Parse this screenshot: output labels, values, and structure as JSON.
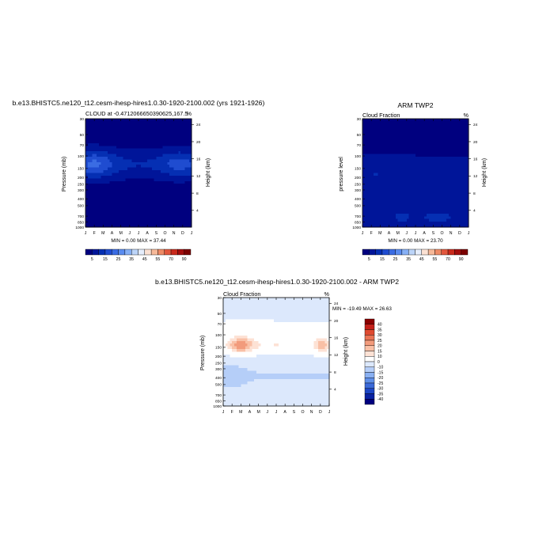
{
  "palette_main": [
    "#00007f",
    "#001599",
    "#052fb3",
    "#1f4cd0",
    "#3a6ce3",
    "#5a8cf0",
    "#86b0f5",
    "#bcd4f8",
    "#e6eefc",
    "#fbe1d3",
    "#f6b999",
    "#ee8b66",
    "#e2573d",
    "#c92a1c",
    "#a30d0d",
    "#7b0000"
  ],
  "palette_diff": [
    "#00007f",
    "#0a22a3",
    "#1c45c4",
    "#3b6ad9",
    "#5f8fe8",
    "#89b0f2",
    "#b5cef8",
    "#dce8fc",
    "#ffffff",
    "#fde2d5",
    "#f9c0a6",
    "#f29b7c",
    "#ea7354",
    "#df4a30",
    "#c4201a",
    "#8b0000"
  ],
  "panels": [
    {
      "title": "b.e13.BHISTC5.ne120_t12.cesm-ihesp-hires1.0.30-1920-2100.002 (yrs 1921-1926)",
      "left_label": "CLOUD at -0.4712066650390625,167.5",
      "right_label": "%",
      "ylabel": "Pressure (mb)",
      "ylabel_right": "Height (km)",
      "stats": "MIN =   0.00 MAX =  37.44",
      "months": [
        "J",
        "F",
        "M",
        "A",
        "M",
        "J",
        "J",
        "A",
        "S",
        "O",
        "N",
        "D",
        "J"
      ],
      "pressure_ticks": [
        "30",
        "50",
        "70",
        "100",
        "150",
        "200",
        "250",
        "300",
        "400",
        "500",
        "700",
        "850",
        "1000"
      ],
      "height_ticks": [
        "24",
        "20",
        "16",
        "12",
        "8",
        "4"
      ],
      "colorbar_labels": [
        "5",
        "15",
        "25",
        "35",
        "45",
        "55",
        "70",
        "90"
      ]
    },
    {
      "title": "ARM TWP2",
      "left_label": "Cloud Fraction",
      "right_label": "%",
      "ylabel": "pressure level",
      "ylabel_right": "Height (km)",
      "stats": "MIN =   0.00 MAX =  23.70",
      "months": [
        "J",
        "F",
        "M",
        "A",
        "M",
        "J",
        "J",
        "A",
        "S",
        "O",
        "N",
        "D",
        "J"
      ],
      "pressure_ticks": [
        "30",
        "50",
        "70",
        "100",
        "150",
        "200",
        "250",
        "300",
        "400",
        "500",
        "700",
        "850",
        "1000"
      ],
      "height_ticks": [
        "24",
        "20",
        "16",
        "12",
        "8",
        "4"
      ],
      "colorbar_labels": [
        "5",
        "15",
        "25",
        "35",
        "45",
        "55",
        "70",
        "90"
      ]
    },
    {
      "title": "b.e13.BHISTC5.ne120_t12.cesm-ihesp-hires1.0.30-1920-2100.002 - ARM TWP2",
      "left_label": "Cloud Fraction",
      "right_label": "%",
      "ylabel": "Pressure (mb)",
      "ylabel_right": "Height (km)",
      "stats": "MIN = -19.49 MAX =  26.63",
      "months": [
        "J",
        "F",
        "M",
        "A",
        "M",
        "J",
        "J",
        "A",
        "S",
        "O",
        "N",
        "D",
        "J"
      ],
      "pressure_ticks": [
        "30",
        "50",
        "70",
        "100",
        "150",
        "200",
        "250",
        "300",
        "400",
        "500",
        "700",
        "850",
        "1000"
      ],
      "height_ticks": [
        "24",
        "20",
        "16",
        "12",
        "8",
        "4"
      ],
      "colorbar_labels": [
        "40",
        "35",
        "30",
        "25",
        "20",
        "15",
        "10",
        "0",
        "-10",
        "-15",
        "-20",
        "-25",
        "-30",
        "-35",
        "-40"
      ]
    }
  ],
  "chart_data": [
    {
      "type": "heatmap",
      "title": "b.e13.BHISTC5.ne120_t12.cesm-ihesp-hires1.0.30-1920-2100.002 (yrs 1921-1926)",
      "variable": "CLOUD at -0.4712066650390625,167.5",
      "units": "%",
      "xlabel": "",
      "ylabel": "Pressure (mb)",
      "ylabel_right": "Height (km)",
      "x": [
        "J",
        "F",
        "M",
        "A",
        "M",
        "J",
        "J",
        "A",
        "S",
        "O",
        "N",
        "D",
        "J"
      ],
      "pressure_levels": [
        30,
        50,
        70,
        100,
        150,
        200,
        250,
        300,
        400,
        500,
        700,
        850,
        1000
      ],
      "ylim": [
        1000,
        30
      ],
      "min": 0.0,
      "max": 37.44,
      "levels": [
        5,
        15,
        25,
        35,
        45,
        55,
        70,
        90
      ]
    },
    {
      "type": "heatmap",
      "title": "ARM TWP2",
      "variable": "Cloud Fraction",
      "units": "%",
      "xlabel": "",
      "ylabel": "pressure level",
      "ylabel_right": "Height (km)",
      "x": [
        "J",
        "F",
        "M",
        "A",
        "M",
        "J",
        "J",
        "A",
        "S",
        "O",
        "N",
        "D",
        "J"
      ],
      "pressure_levels": [
        30,
        50,
        70,
        100,
        150,
        200,
        250,
        300,
        400,
        500,
        700,
        850,
        1000
      ],
      "ylim": [
        1000,
        30
      ],
      "min": 0.0,
      "max": 23.7,
      "levels": [
        5,
        15,
        25,
        35,
        45,
        55,
        70,
        90
      ]
    },
    {
      "type": "heatmap",
      "title": "b.e13.BHISTC5.ne120_t12.cesm-ihesp-hires1.0.30-1920-2100.002 - ARM TWP2",
      "variable": "Cloud Fraction",
      "units": "%",
      "xlabel": "",
      "ylabel": "Pressure (mb)",
      "ylabel_right": "Height (km)",
      "x": [
        "J",
        "F",
        "M",
        "A",
        "M",
        "J",
        "J",
        "A",
        "S",
        "O",
        "N",
        "D",
        "J"
      ],
      "pressure_levels": [
        30,
        50,
        70,
        100,
        150,
        200,
        250,
        300,
        400,
        500,
        700,
        850,
        1000
      ],
      "ylim": [
        1000,
        30
      ],
      "min": -19.49,
      "max": 26.63,
      "levels": [
        -40,
        -35,
        -30,
        -25,
        -20,
        -15,
        -10,
        0,
        10,
        15,
        20,
        25,
        30,
        35,
        40
      ]
    }
  ]
}
